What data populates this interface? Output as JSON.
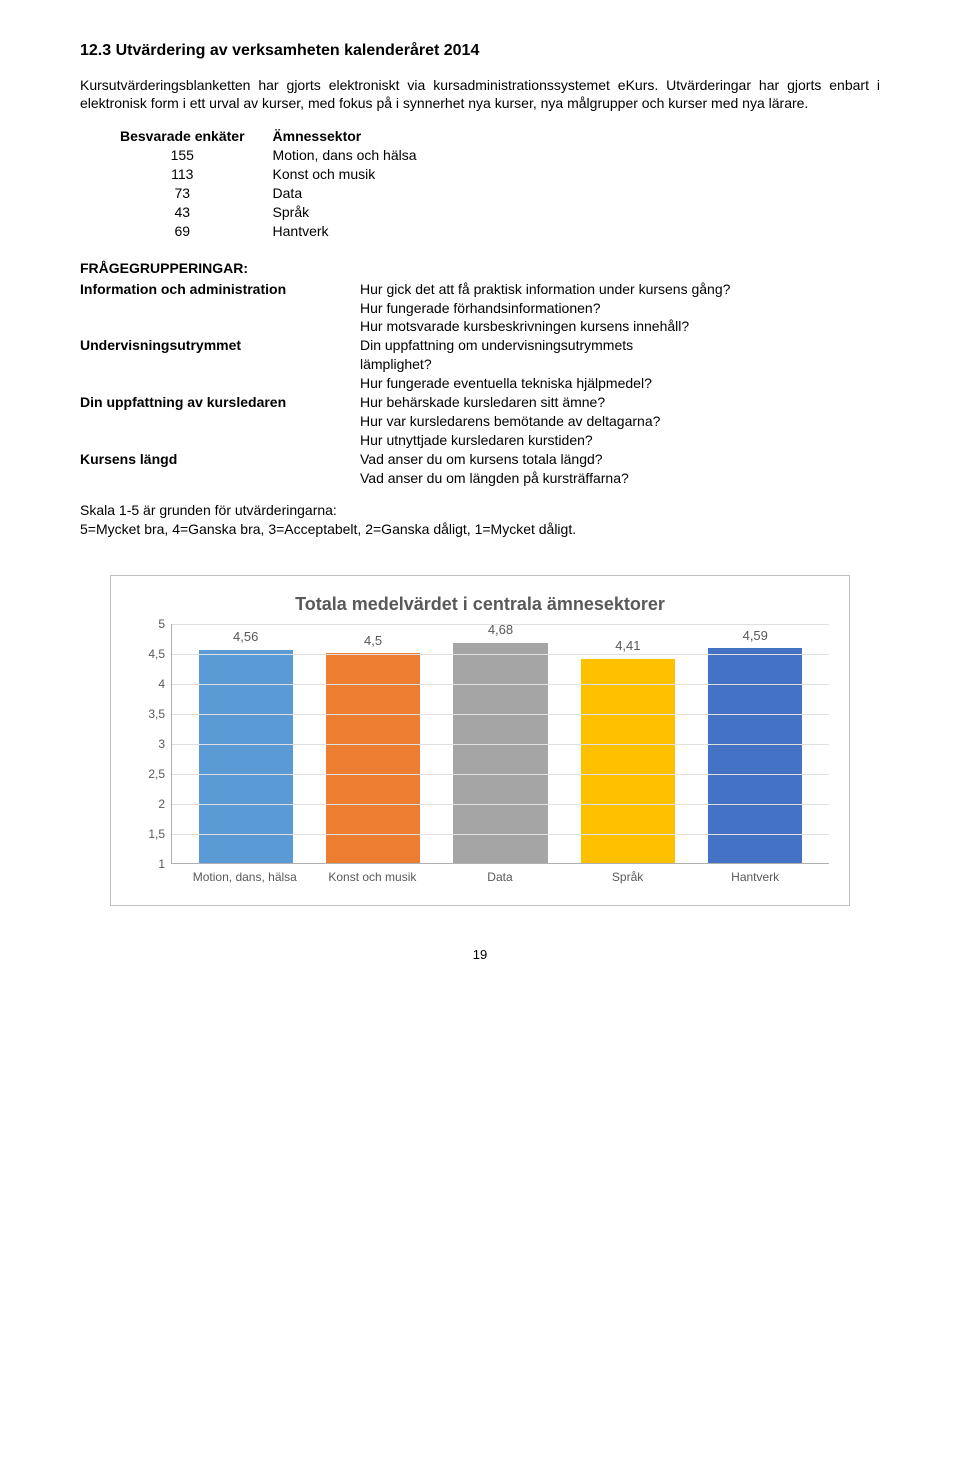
{
  "heading": "12.3  Utvärdering av verksamheten kalenderåret 2014",
  "intro": "Kursutvärderingsblanketten har gjorts elektroniskt via kursadministrationssystemet eKurs. Utvärderingar har gjorts enbart i elektronisk form i ett urval av kurser, med fokus på i synnerhet nya kurser, nya målgrupper och kurser med nya lärare.",
  "enkat": {
    "col1": "Besvarade enkäter",
    "col2": "Ämnessektor",
    "rows": [
      {
        "n": "155",
        "s": "Motion, dans och hälsa"
      },
      {
        "n": "113",
        "s": "Konst och musik"
      },
      {
        "n": "73",
        "s": "Data"
      },
      {
        "n": "43",
        "s": "Språk"
      },
      {
        "n": "69",
        "s": "Hantverk"
      }
    ]
  },
  "fgroup_title": "FRÅGEGRUPPERINGAR:",
  "fgroups": [
    {
      "label": "Information och administration",
      "lines": [
        "Hur gick det att få praktisk information under kursens gång?",
        "Hur fungerade förhandsinformationen?",
        "Hur motsvarade kursbeskrivningen kursens innehåll?"
      ]
    },
    {
      "label": "Undervisningsutrymmet",
      "lines": [
        "Din uppfattning om undervisningsutrymmets",
        "lämplighet?",
        "Hur fungerade eventuella tekniska hjälpmedel?"
      ]
    },
    {
      "label": "Din uppfattning av kursledaren",
      "lines": [
        "Hur behärskade kursledaren sitt ämne?",
        "Hur var kursledarens bemötande av deltagarna?",
        "Hur utnyttjade kursledaren kurstiden?"
      ]
    },
    {
      "label": "Kursens längd",
      "lines": [
        "Vad anser du om kursens totala längd?",
        "Vad anser du om längden på kursträffarna?"
      ]
    }
  ],
  "scale_note_1": "Skala 1-5 är grunden för utvärderingarna:",
  "scale_note_2": "5=Mycket bra, 4=Ganska bra, 3=Acceptabelt, 2=Ganska dåligt, 1=Mycket dåligt.",
  "chart": {
    "type": "bar",
    "title": "Totala medelvärdet i centrala ämnesektorer",
    "categories": [
      "Motion, dans, hälsa",
      "Konst och musik",
      "Data",
      "Språk",
      "Hantverk"
    ],
    "values": [
      4.56,
      4.5,
      4.68,
      4.41,
      4.59
    ],
    "value_labels": [
      "4,56",
      "4,5",
      "4,68",
      "4,41",
      "4,59"
    ],
    "bar_colors": [
      "#5b9bd5",
      "#ed7d31",
      "#a5a5a5",
      "#ffc000",
      "#4472c4"
    ],
    "ylim": [
      1,
      5
    ],
    "ytick_step": 0.5,
    "yticks": [
      "5",
      "4,5",
      "4",
      "3,5",
      "3",
      "2,5",
      "2",
      "1,5",
      "1"
    ],
    "background_color": "#ffffff",
    "grid_color": "#e0e0e0",
    "border_color": "#c0c0c0",
    "title_fontsize": 18,
    "label_fontsize": 12,
    "text_color": "#595959",
    "bar_width": 0.78
  },
  "page_number": "19"
}
